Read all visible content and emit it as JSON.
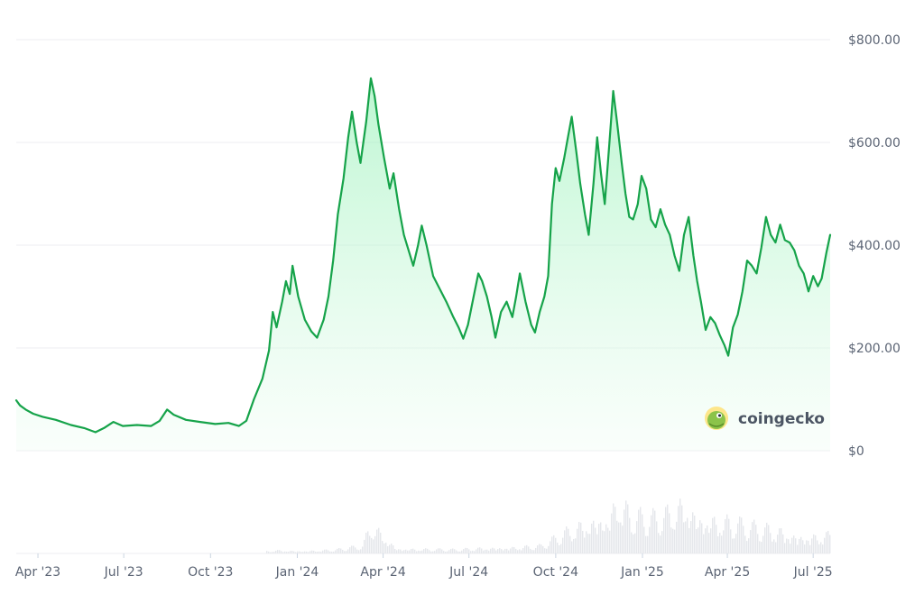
{
  "brand": {
    "name": "coingecko",
    "logo_icon": "gecko-logo-icon"
  },
  "colors": {
    "line": "#16a34a",
    "fill_top": "#86efac",
    "fill_bottom": "#f0fdf4",
    "volume": "#e5e7eb",
    "grid": "#eceef2",
    "text": "#5b6474"
  },
  "chart_data": {
    "type": "area",
    "x_unit": "date",
    "y_unit": "USD",
    "ylim": [
      0,
      800
    ],
    "y_ticks": [
      {
        "value": 800,
        "label": "$800.00"
      },
      {
        "value": 600,
        "label": "$600.00"
      },
      {
        "value": 400,
        "label": "$400.00"
      },
      {
        "value": 200,
        "label": "$200.00"
      },
      {
        "value": 0,
        "label": "$0"
      }
    ],
    "x_ticks": [
      {
        "date": "2023-04-01",
        "label": "Apr '23"
      },
      {
        "date": "2023-07-01",
        "label": "Jul '23"
      },
      {
        "date": "2023-10-01",
        "label": "Oct '23"
      },
      {
        "date": "2024-01-01",
        "label": "Jan '24"
      },
      {
        "date": "2024-04-01",
        "label": "Apr '24"
      },
      {
        "date": "2024-07-01",
        "label": "Jul '24"
      },
      {
        "date": "2024-10-01",
        "label": "Oct '24"
      },
      {
        "date": "2025-01-01",
        "label": "Jan '25"
      },
      {
        "date": "2025-04-01",
        "label": "Apr '25"
      },
      {
        "date": "2025-07-01",
        "label": "Jul '25"
      }
    ],
    "grid": true,
    "series": [
      {
        "points": [
          [
            "2023-03-09",
            98
          ],
          [
            "2023-03-13",
            88
          ],
          [
            "2023-03-19",
            80
          ],
          [
            "2023-03-27",
            72
          ],
          [
            "2023-04-06",
            66
          ],
          [
            "2023-04-20",
            60
          ],
          [
            "2023-05-06",
            50
          ],
          [
            "2023-05-20",
            44
          ],
          [
            "2023-06-01",
            36
          ],
          [
            "2023-06-10",
            44
          ],
          [
            "2023-06-20",
            56
          ],
          [
            "2023-06-30",
            48
          ],
          [
            "2023-07-15",
            50
          ],
          [
            "2023-07-30",
            48
          ],
          [
            "2023-08-08",
            58
          ],
          [
            "2023-08-16",
            80
          ],
          [
            "2023-08-23",
            70
          ],
          [
            "2023-09-05",
            60
          ],
          [
            "2023-09-20",
            56
          ],
          [
            "2023-10-06",
            52
          ],
          [
            "2023-10-20",
            54
          ],
          [
            "2023-10-31",
            48
          ],
          [
            "2023-11-08",
            58
          ],
          [
            "2023-11-16",
            100
          ],
          [
            "2023-11-25",
            140
          ],
          [
            "2023-12-02",
            195
          ],
          [
            "2023-12-06",
            270
          ],
          [
            "2023-12-10",
            240
          ],
          [
            "2023-12-16",
            290
          ],
          [
            "2023-12-20",
            330
          ],
          [
            "2023-12-24",
            305
          ],
          [
            "2023-12-27",
            360
          ],
          [
            "2024-01-02",
            300
          ],
          [
            "2024-01-09",
            255
          ],
          [
            "2024-01-16",
            232
          ],
          [
            "2024-01-22",
            220
          ],
          [
            "2024-01-29",
            255
          ],
          [
            "2024-02-03",
            300
          ],
          [
            "2024-02-08",
            370
          ],
          [
            "2024-02-13",
            460
          ],
          [
            "2024-02-19",
            530
          ],
          [
            "2024-02-24",
            610
          ],
          [
            "2024-02-28",
            660
          ],
          [
            "2024-03-04",
            600
          ],
          [
            "2024-03-08",
            560
          ],
          [
            "2024-03-14",
            640
          ],
          [
            "2024-03-19",
            725
          ],
          [
            "2024-03-23",
            690
          ],
          [
            "2024-03-27",
            635
          ],
          [
            "2024-04-02",
            570
          ],
          [
            "2024-04-08",
            510
          ],
          [
            "2024-04-12",
            540
          ],
          [
            "2024-04-18",
            470
          ],
          [
            "2024-04-23",
            420
          ],
          [
            "2024-04-28",
            390
          ],
          [
            "2024-05-03",
            360
          ],
          [
            "2024-05-08",
            400
          ],
          [
            "2024-05-12",
            438
          ],
          [
            "2024-05-17",
            400
          ],
          [
            "2024-05-24",
            340
          ],
          [
            "2024-05-31",
            315
          ],
          [
            "2024-06-07",
            290
          ],
          [
            "2024-06-14",
            262
          ],
          [
            "2024-06-20",
            240
          ],
          [
            "2024-06-25",
            218
          ],
          [
            "2024-06-30",
            245
          ],
          [
            "2024-07-06",
            300
          ],
          [
            "2024-07-11",
            345
          ],
          [
            "2024-07-15",
            330
          ],
          [
            "2024-07-20",
            300
          ],
          [
            "2024-07-25",
            260
          ],
          [
            "2024-07-29",
            220
          ],
          [
            "2024-08-04",
            270
          ],
          [
            "2024-08-10",
            290
          ],
          [
            "2024-08-16",
            260
          ],
          [
            "2024-08-20",
            300
          ],
          [
            "2024-08-24",
            345
          ],
          [
            "2024-08-30",
            290
          ],
          [
            "2024-09-05",
            245
          ],
          [
            "2024-09-09",
            230
          ],
          [
            "2024-09-14",
            270
          ],
          [
            "2024-09-19",
            300
          ],
          [
            "2024-09-23",
            340
          ],
          [
            "2024-09-27",
            480
          ],
          [
            "2024-10-01",
            550
          ],
          [
            "2024-10-05",
            525
          ],
          [
            "2024-10-10",
            570
          ],
          [
            "2024-10-14",
            610
          ],
          [
            "2024-10-18",
            650
          ],
          [
            "2024-10-23",
            580
          ],
          [
            "2024-10-27",
            520
          ],
          [
            "2024-11-01",
            460
          ],
          [
            "2024-11-05",
            420
          ],
          [
            "2024-11-10",
            520
          ],
          [
            "2024-11-14",
            610
          ],
          [
            "2024-11-18",
            540
          ],
          [
            "2024-11-22",
            480
          ],
          [
            "2024-11-27",
            600
          ],
          [
            "2024-12-01",
            700
          ],
          [
            "2024-12-05",
            640
          ],
          [
            "2024-12-10",
            560
          ],
          [
            "2024-12-14",
            500
          ],
          [
            "2024-12-18",
            455
          ],
          [
            "2024-12-22",
            450
          ],
          [
            "2024-12-27",
            480
          ],
          [
            "2024-12-31",
            535
          ],
          [
            "2025-01-05",
            510
          ],
          [
            "2025-01-10",
            450
          ],
          [
            "2025-01-15",
            435
          ],
          [
            "2025-01-20",
            470
          ],
          [
            "2025-01-25",
            440
          ],
          [
            "2025-01-30",
            420
          ],
          [
            "2025-02-04",
            380
          ],
          [
            "2025-02-09",
            350
          ],
          [
            "2025-02-14",
            420
          ],
          [
            "2025-02-19",
            455
          ],
          [
            "2025-02-24",
            380
          ],
          [
            "2025-02-28",
            330
          ],
          [
            "2025-03-04",
            290
          ],
          [
            "2025-03-09",
            235
          ],
          [
            "2025-03-14",
            260
          ],
          [
            "2025-03-19",
            248
          ],
          [
            "2025-03-24",
            225
          ],
          [
            "2025-03-29",
            205
          ],
          [
            "2025-04-02",
            185
          ],
          [
            "2025-04-07",
            240
          ],
          [
            "2025-04-12",
            265
          ],
          [
            "2025-04-17",
            310
          ],
          [
            "2025-04-22",
            370
          ],
          [
            "2025-04-27",
            360
          ],
          [
            "2025-05-02",
            345
          ],
          [
            "2025-05-07",
            395
          ],
          [
            "2025-05-12",
            455
          ],
          [
            "2025-05-17",
            420
          ],
          [
            "2025-05-22",
            405
          ],
          [
            "2025-05-27",
            440
          ],
          [
            "2025-06-01",
            410
          ],
          [
            "2025-06-06",
            405
          ],
          [
            "2025-06-11",
            390
          ],
          [
            "2025-06-16",
            360
          ],
          [
            "2025-06-21",
            345
          ],
          [
            "2025-06-26",
            310
          ],
          [
            "2025-07-01",
            340
          ],
          [
            "2025-07-06",
            320
          ],
          [
            "2025-07-10",
            335
          ],
          [
            "2025-07-15",
            385
          ],
          [
            "2025-07-19",
            420
          ]
        ]
      }
    ],
    "volume_note": "volume bars shown at bottom, unlabeled",
    "volume": [
      [
        "2023-03-15",
        1
      ],
      [
        "2023-05-15",
        1
      ],
      [
        "2023-07-15",
        1
      ],
      [
        "2023-09-15",
        1
      ],
      [
        "2023-11-15",
        2
      ],
      [
        "2023-12-10",
        5
      ],
      [
        "2024-01-05",
        4
      ],
      [
        "2024-02-10",
        6
      ],
      [
        "2024-03-10",
        12
      ],
      [
        "2024-03-18",
        48
      ],
      [
        "2024-04-15",
        8
      ],
      [
        "2024-05-15",
        7
      ],
      [
        "2024-06-15",
        6
      ],
      [
        "2024-07-15",
        9
      ],
      [
        "2024-08-15",
        10
      ],
      [
        "2024-09-15",
        12
      ],
      [
        "2024-10-01",
        25
      ],
      [
        "2024-10-20",
        42
      ],
      [
        "2024-11-10",
        55
      ],
      [
        "2024-11-25",
        60
      ],
      [
        "2024-12-05",
        88
      ],
      [
        "2024-12-20",
        60
      ],
      [
        "2025-01-10",
        55
      ],
      [
        "2025-01-25",
        62
      ],
      [
        "2025-02-05",
        75
      ],
      [
        "2025-02-15",
        82
      ],
      [
        "2025-03-01",
        60
      ],
      [
        "2025-03-20",
        55
      ],
      [
        "2025-04-05",
        50
      ],
      [
        "2025-04-25",
        42
      ],
      [
        "2025-05-10",
        40
      ],
      [
        "2025-05-25",
        38
      ],
      [
        "2025-06-10",
        30
      ],
      [
        "2025-06-25",
        28
      ],
      [
        "2025-07-15",
        30
      ]
    ]
  }
}
